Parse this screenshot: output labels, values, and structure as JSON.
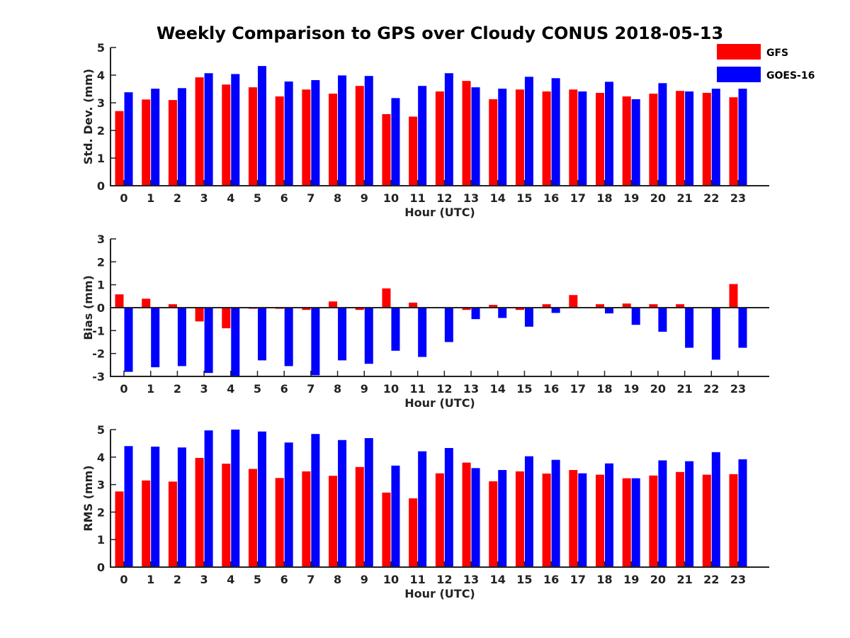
{
  "title": "Weekly Comparison to GPS over Cloudy CONUS 2018-05-13",
  "colors": {
    "GFS": "#ff0000",
    "GOES-16": "#0000ff",
    "axis": "#222222"
  },
  "legend": {
    "placement": "top-right",
    "entries": [
      "GFS",
      "GOES-16"
    ]
  },
  "chart_data": [
    {
      "type": "bar",
      "ylabel": "Std. Dev. (mm)",
      "xlabel": "Hour (UTC)",
      "ylim": [
        0,
        5
      ],
      "yticks": [
        0,
        1,
        2,
        3,
        4,
        5
      ],
      "categories": [
        "0",
        "1",
        "2",
        "3",
        "4",
        "5",
        "6",
        "7",
        "8",
        "9",
        "10",
        "11",
        "12",
        "13",
        "14",
        "15",
        "16",
        "17",
        "18",
        "19",
        "20",
        "21",
        "22",
        "23"
      ],
      "series": [
        {
          "name": "GFS",
          "values": [
            2.7,
            3.12,
            3.1,
            3.92,
            3.66,
            3.56,
            3.23,
            3.48,
            3.33,
            3.61,
            2.59,
            2.5,
            3.41,
            3.79,
            3.13,
            3.48,
            3.41,
            3.48,
            3.36,
            3.23,
            3.33,
            3.43,
            3.36,
            3.2
          ]
        },
        {
          "name": "GOES-16",
          "values": [
            3.38,
            3.51,
            3.53,
            4.07,
            4.04,
            4.33,
            3.77,
            3.82,
            3.99,
            3.97,
            3.17,
            3.61,
            4.07,
            3.56,
            3.51,
            3.94,
            3.89,
            3.41,
            3.76,
            3.13,
            3.71,
            3.41,
            3.51,
            3.51
          ]
        }
      ]
    },
    {
      "type": "bar",
      "ylabel": "Bias (mm)",
      "xlabel": "Hour (UTC)",
      "ylim": [
        -3,
        3
      ],
      "yticks": [
        -3,
        -2,
        -1,
        0,
        1,
        2,
        3
      ],
      "categories": [
        "0",
        "1",
        "2",
        "3",
        "4",
        "5",
        "6",
        "7",
        "8",
        "9",
        "10",
        "11",
        "12",
        "13",
        "14",
        "15",
        "16",
        "17",
        "18",
        "19",
        "20",
        "21",
        "22",
        "23"
      ],
      "series": [
        {
          "name": "GFS",
          "values": [
            0.58,
            0.39,
            0.15,
            -0.6,
            -0.9,
            -0.05,
            -0.05,
            -0.1,
            0.27,
            -0.1,
            0.84,
            0.22,
            -0.02,
            -0.1,
            0.12,
            -0.1,
            0.15,
            0.55,
            0.15,
            0.18,
            0.15,
            0.15,
            -0.02,
            1.03
          ]
        },
        {
          "name": "GOES-16",
          "values": [
            -2.8,
            -2.6,
            -2.55,
            -2.85,
            -3.0,
            -2.3,
            -2.55,
            -2.95,
            -2.3,
            -2.45,
            -1.88,
            -2.15,
            -1.5,
            -0.5,
            -0.45,
            -0.83,
            -0.23,
            0.0,
            -0.25,
            -0.75,
            -1.05,
            -1.75,
            -2.27,
            -1.75
          ]
        }
      ]
    },
    {
      "type": "bar",
      "ylabel": "RMS (mm)",
      "xlabel": "Hour (UTC)",
      "ylim": [
        0,
        5
      ],
      "yticks": [
        0,
        1,
        2,
        3,
        4,
        5
      ],
      "categories": [
        "0",
        "1",
        "2",
        "3",
        "4",
        "5",
        "6",
        "7",
        "8",
        "9",
        "10",
        "11",
        "12",
        "13",
        "14",
        "15",
        "16",
        "17",
        "18",
        "19",
        "20",
        "21",
        "22",
        "23"
      ],
      "series": [
        {
          "name": "GFS",
          "values": [
            2.75,
            3.15,
            3.11,
            3.97,
            3.76,
            3.57,
            3.24,
            3.48,
            3.32,
            3.64,
            2.71,
            2.5,
            3.41,
            3.8,
            3.12,
            3.48,
            3.4,
            3.53,
            3.36,
            3.23,
            3.33,
            3.46,
            3.36,
            3.38
          ]
        },
        {
          "name": "GOES-16",
          "values": [
            4.4,
            4.38,
            4.35,
            4.97,
            5.0,
            4.93,
            4.53,
            4.84,
            4.62,
            4.69,
            3.69,
            4.21,
            4.33,
            3.6,
            3.53,
            4.03,
            3.9,
            3.41,
            3.77,
            3.23,
            3.88,
            3.85,
            4.18,
            3.92
          ]
        }
      ]
    }
  ]
}
